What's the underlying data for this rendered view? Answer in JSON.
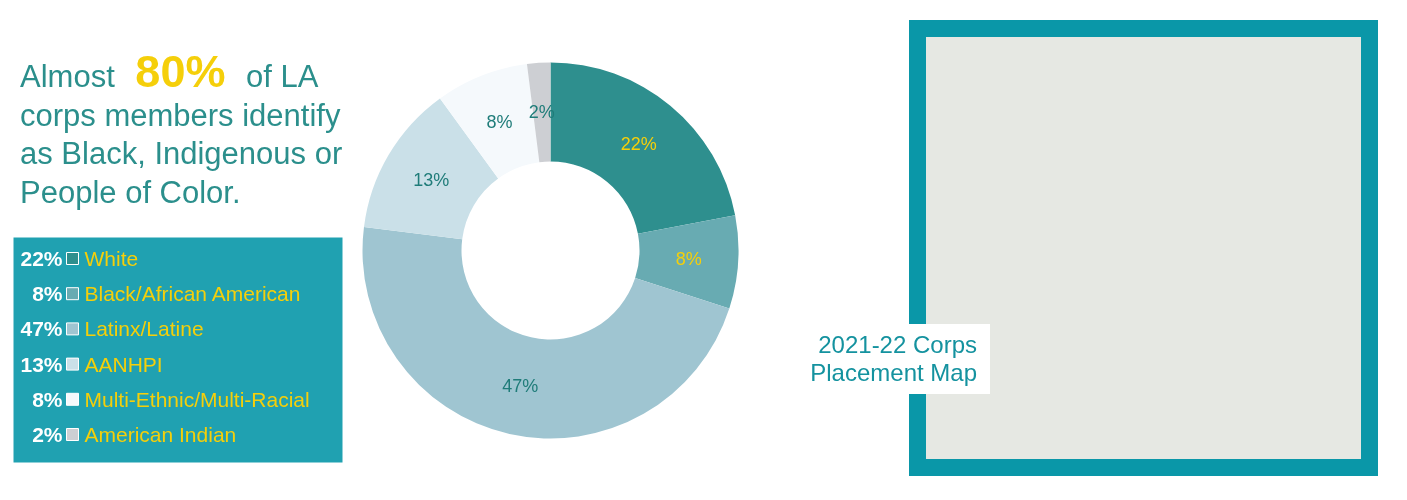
{
  "chart_data": {
    "type": "donut",
    "title": "Almost 80% of LA corps members identify as Black, Indigenous or People of Color.",
    "categories": [
      "White",
      "Black/African American",
      "Latinx/Latine",
      "AANHPI",
      "Multi-Ethnic/Multi-Racial",
      "American Indian"
    ],
    "values": [
      22,
      8,
      47,
      13,
      8,
      2
    ],
    "colors": [
      "#2e8f8e",
      "#68abb2",
      "#9fc5d1",
      "#cae0e8",
      "#f5f9fc",
      "#cdcfd3"
    ],
    "value_labels": [
      "22%",
      "8%",
      "47%",
      "13%",
      "8%",
      "2%"
    ],
    "legend": "left",
    "annotations": [
      "2021-22 Corps Placement Map"
    ]
  }
}
